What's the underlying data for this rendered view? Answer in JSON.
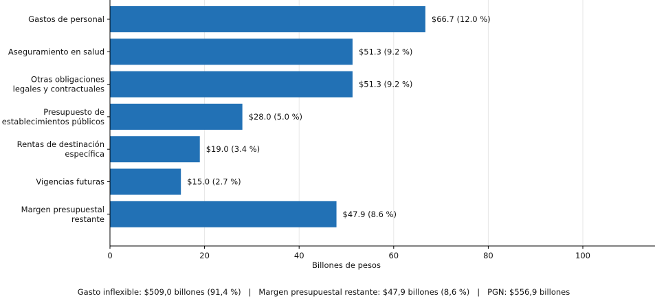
{
  "chart_data": {
    "type": "bar",
    "orientation": "horizontal",
    "categories": [
      "Gastos de personal",
      "Aseguramiento en salud",
      "Otras obligaciones\nlegales y contractuales",
      "Presupuesto de\nestablecimientos públicos",
      "Rentas de destinación\nespecífica",
      "Vigencias futuras",
      "Margen presupuestal\nrestante"
    ],
    "values": [
      66.7,
      51.3,
      51.3,
      28.0,
      19.0,
      15.0,
      47.9
    ],
    "data_labels": [
      "$66.7  (12.0 %)",
      "$51.3  (9.2 %)",
      "$51.3  (9.2 %)",
      "$28.0  (5.0 %)",
      "$19.0  (3.4 %)",
      "$15.0  (2.7 %)",
      "$47.9  (8.6 %)"
    ],
    "xlabel": "Billones de pesos",
    "xlim": [
      0,
      115
    ],
    "xticks": [
      0,
      20,
      40,
      60,
      80,
      100
    ],
    "grid": "vertical",
    "bar_color": "#2271b5",
    "footer": "Gasto inflexible: $509,0 billones (91,4 %)   |   Margen presupuestal restante: $47,9 billones (8,6 %)   |   PGN: $556,9 billones"
  }
}
